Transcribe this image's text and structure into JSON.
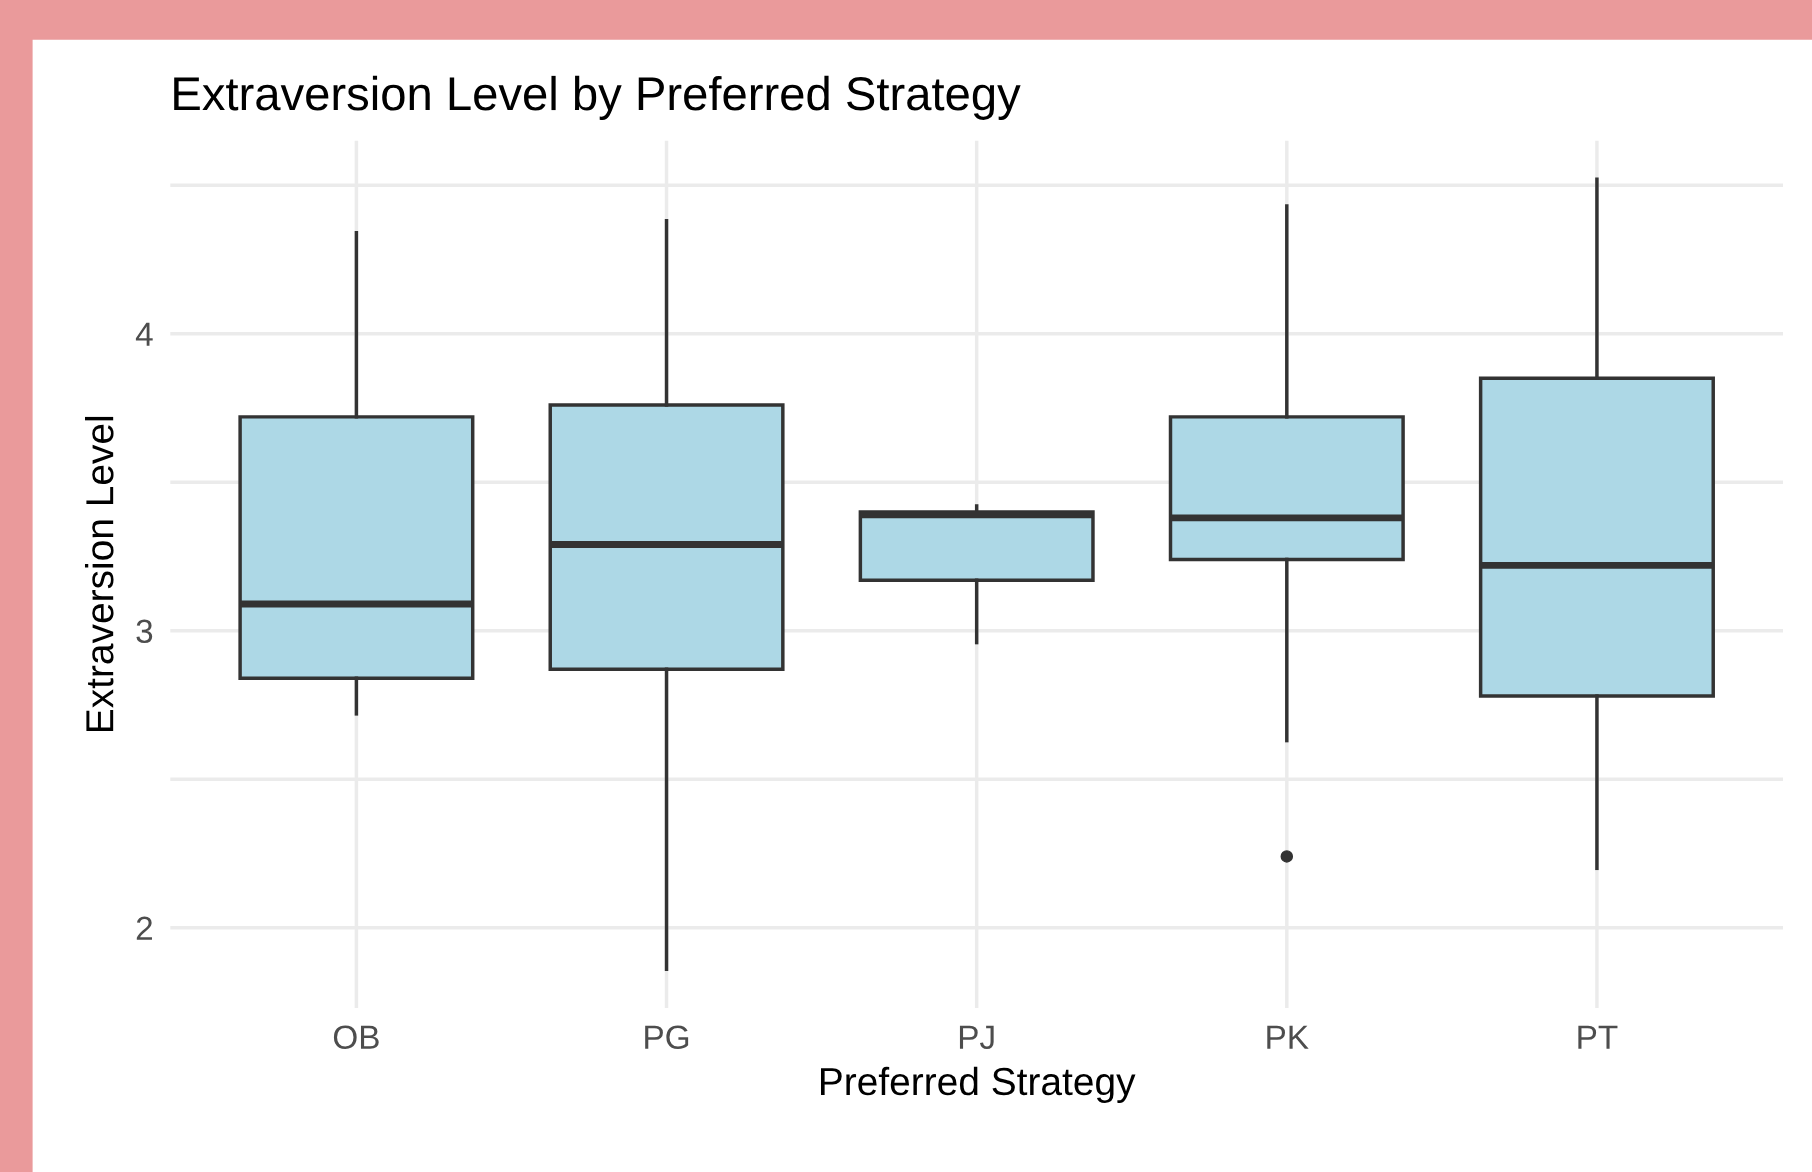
{
  "chart_data": {
    "type": "box",
    "title": "Extraversion Level by Preferred Strategy",
    "xlabel": "Preferred Strategy",
    "ylabel": "Extraversion Level",
    "categories": [
      "OB",
      "PG",
      "PJ",
      "PK",
      "PT"
    ],
    "color": "#add8e6",
    "boxes": [
      {
        "low": 2.72,
        "q1": 2.84,
        "median": 3.09,
        "q3": 3.72,
        "high": 4.34
      },
      {
        "low": 1.86,
        "q1": 2.87,
        "median": 3.29,
        "q3": 3.76,
        "high": 4.38
      },
      {
        "low": 2.96,
        "q1": 3.17,
        "median": 3.39,
        "q3": 3.4,
        "high": 3.42
      },
      {
        "low": 2.63,
        "q1": 3.24,
        "median": 3.38,
        "q3": 3.72,
        "high": 4.43,
        "outliers": [
          2.24
        ]
      },
      {
        "low": 2.2,
        "q1": 2.78,
        "median": 3.22,
        "q3": 3.85,
        "high": 4.52
      }
    ],
    "ylim": [
      1.73,
      4.65
    ],
    "yticks": [
      2,
      {
        "value": 2.5,
        "label": null
      },
      3,
      {
        "value": 3.5,
        "label": null
      },
      4,
      {
        "value": 4.5,
        "label": null
      }
    ],
    "grid": true,
    "legend": false
  }
}
